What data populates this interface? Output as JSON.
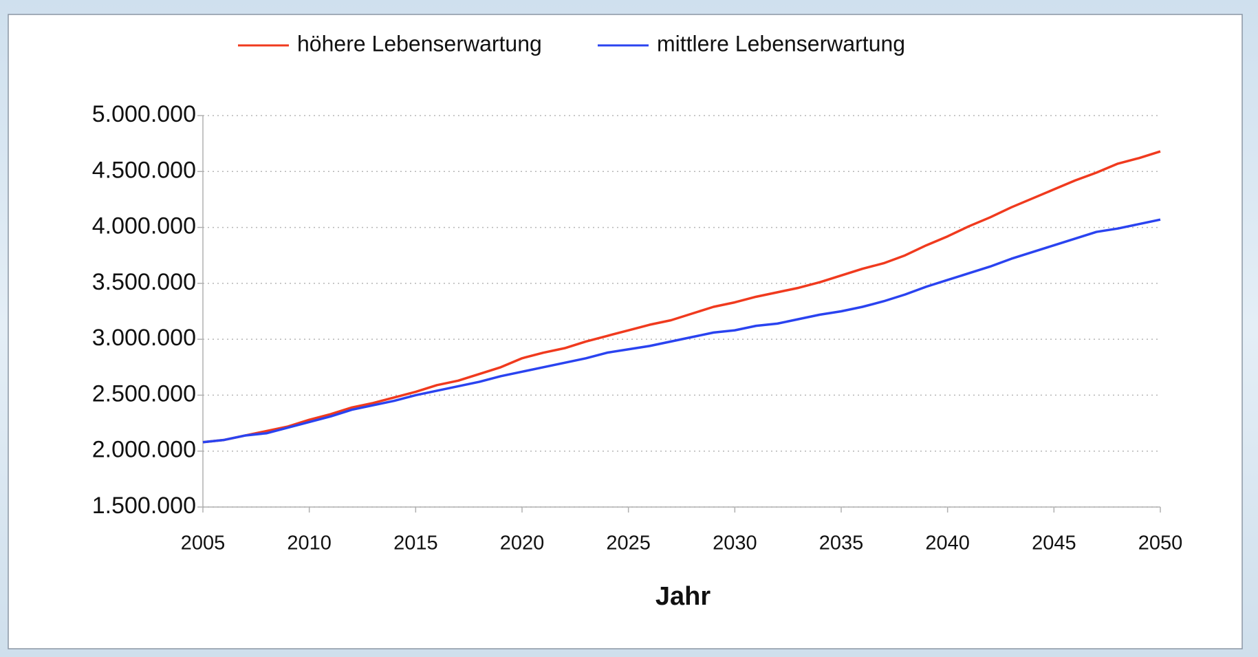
{
  "chart_data": {
    "type": "line",
    "xlabel": "Jahr",
    "x": [
      2005,
      2006,
      2007,
      2008,
      2009,
      2010,
      2011,
      2012,
      2013,
      2014,
      2015,
      2016,
      2017,
      2018,
      2019,
      2020,
      2021,
      2022,
      2023,
      2024,
      2025,
      2026,
      2027,
      2028,
      2029,
      2030,
      2031,
      2032,
      2033,
      2034,
      2035,
      2036,
      2037,
      2038,
      2039,
      2040,
      2041,
      2042,
      2043,
      2044,
      2045,
      2046,
      2047,
      2048,
      2049,
      2050
    ],
    "series": [
      {
        "name": "höhere Lebenserwartung",
        "color": "#f03a1e",
        "values": [
          2080000,
          2100000,
          2140000,
          2180000,
          2220000,
          2280000,
          2330000,
          2390000,
          2430000,
          2480000,
          2530000,
          2590000,
          2630000,
          2690000,
          2750000,
          2830000,
          2880000,
          2920000,
          2980000,
          3030000,
          3080000,
          3130000,
          3170000,
          3230000,
          3290000,
          3330000,
          3380000,
          3420000,
          3460000,
          3510000,
          3570000,
          3630000,
          3680000,
          3750000,
          3840000,
          3920000,
          4010000,
          4090000,
          4180000,
          4260000,
          4340000,
          4420000,
          4490000,
          4570000,
          4620000,
          4680000
        ]
      },
      {
        "name": "mittlere Lebenserwartung",
        "color": "#2a43f0",
        "values": [
          2080000,
          2100000,
          2140000,
          2160000,
          2210000,
          2260000,
          2310000,
          2370000,
          2410000,
          2450000,
          2500000,
          2540000,
          2580000,
          2620000,
          2670000,
          2710000,
          2750000,
          2790000,
          2830000,
          2880000,
          2910000,
          2940000,
          2980000,
          3020000,
          3060000,
          3080000,
          3120000,
          3140000,
          3180000,
          3220000,
          3250000,
          3290000,
          3340000,
          3400000,
          3470000,
          3530000,
          3590000,
          3650000,
          3720000,
          3780000,
          3840000,
          3900000,
          3960000,
          3990000,
          4030000,
          4070000
        ]
      }
    ],
    "xlim": [
      2005,
      2050
    ],
    "xticks": [
      2005,
      2010,
      2015,
      2020,
      2025,
      2030,
      2035,
      2040,
      2045,
      2050
    ],
    "ylim": [
      1500000,
      5000000
    ],
    "yticks": [
      {
        "value": 1500000,
        "label": "1.500.000"
      },
      {
        "value": 2000000,
        "label": "2.000.000"
      },
      {
        "value": 2500000,
        "label": "2.500.000"
      },
      {
        "value": 3000000,
        "label": "3.000.000"
      },
      {
        "value": 3500000,
        "label": "3.500.000"
      },
      {
        "value": 4000000,
        "label": "4.000.000"
      },
      {
        "value": 4500000,
        "label": "4.500.000"
      },
      {
        "value": 5000000,
        "label": "5.000.000"
      }
    ],
    "grid": true,
    "legend": "top"
  }
}
